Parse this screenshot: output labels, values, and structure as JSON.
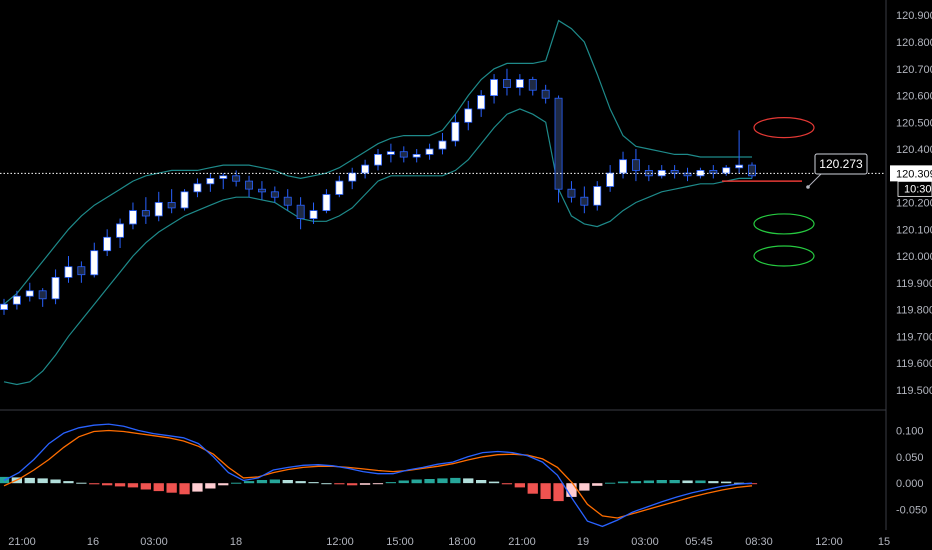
{
  "colors": {
    "background": "#000000",
    "bollinger": "#1e8a8a",
    "candle_up_body": "#ffffff",
    "candle_down_body": "#1f2a44",
    "candle_wick": "#2962ff",
    "price_line": "#ffffff",
    "hist_pos_strong": "#26a69a",
    "hist_pos_weak": "#b2dfdb",
    "hist_neg_strong": "#ef5350",
    "hist_neg_weak": "#ffcdd2",
    "macd_line": "#2962ff",
    "signal_line": "#ff6d00",
    "red_marker": "#e53935",
    "green_marker": "#26c940",
    "divider": "#3a3d45"
  },
  "chart_data": [
    {
      "type": "candlestick",
      "yaxis_ticks": [
        "120.900",
        "120.800",
        "120.700",
        "120.600",
        "120.500",
        "120.400",
        "120.300",
        "120.200",
        "120.100",
        "120.000",
        "119.900",
        "119.800",
        "119.700",
        "119.600",
        "119.500"
      ],
      "ylim": [
        119.432,
        120.957
      ],
      "current_price": "120.309",
      "countdown": "10:30",
      "callout": "120.273",
      "candles": [
        [
          119.8,
          119.84,
          119.78,
          119.82
        ],
        [
          119.82,
          119.87,
          119.8,
          119.85
        ],
        [
          119.85,
          119.9,
          119.83,
          119.87
        ],
        [
          119.87,
          119.88,
          119.81,
          119.84
        ],
        [
          119.84,
          119.95,
          119.82,
          119.92
        ],
        [
          119.92,
          120.0,
          119.9,
          119.96
        ],
        [
          119.96,
          119.98,
          119.9,
          119.93
        ],
        [
          119.93,
          120.05,
          119.92,
          120.02
        ],
        [
          120.02,
          120.1,
          120.0,
          120.07
        ],
        [
          120.07,
          120.14,
          120.03,
          120.12
        ],
        [
          120.12,
          120.2,
          120.1,
          120.17
        ],
        [
          120.17,
          120.22,
          120.12,
          120.15
        ],
        [
          120.15,
          120.24,
          120.13,
          120.2
        ],
        [
          120.2,
          120.25,
          120.16,
          120.18
        ],
        [
          120.18,
          120.25,
          120.17,
          120.24
        ],
        [
          120.24,
          120.29,
          120.22,
          120.27
        ],
        [
          120.27,
          120.31,
          120.24,
          120.29
        ],
        [
          120.29,
          120.31,
          120.25,
          120.3
        ],
        [
          120.3,
          120.32,
          120.26,
          120.28
        ],
        [
          120.28,
          120.3,
          120.22,
          120.25
        ],
        [
          120.25,
          120.28,
          120.21,
          120.24
        ],
        [
          120.24,
          120.26,
          120.2,
          120.22
        ],
        [
          120.22,
          120.25,
          120.17,
          120.19
        ],
        [
          120.19,
          120.22,
          120.1,
          120.14
        ],
        [
          120.14,
          120.2,
          120.12,
          120.17
        ],
        [
          120.17,
          120.25,
          120.16,
          120.23
        ],
        [
          120.23,
          120.3,
          120.22,
          120.28
        ],
        [
          120.28,
          120.33,
          120.25,
          120.31
        ],
        [
          120.31,
          120.36,
          120.29,
          120.34
        ],
        [
          120.34,
          120.4,
          120.32,
          120.38
        ],
        [
          120.38,
          120.42,
          120.35,
          120.39
        ],
        [
          120.39,
          120.41,
          120.35,
          120.37
        ],
        [
          120.37,
          120.4,
          120.35,
          120.38
        ],
        [
          120.38,
          120.42,
          120.36,
          120.4
        ],
        [
          120.4,
          120.46,
          120.38,
          120.43
        ],
        [
          120.43,
          120.53,
          120.41,
          120.5
        ],
        [
          120.5,
          120.58,
          120.47,
          120.55
        ],
        [
          120.55,
          120.62,
          120.52,
          120.6
        ],
        [
          120.6,
          120.68,
          120.57,
          120.66
        ],
        [
          120.66,
          120.7,
          120.6,
          120.63
        ],
        [
          120.63,
          120.68,
          120.6,
          120.66
        ],
        [
          120.66,
          120.67,
          120.6,
          120.62
        ],
        [
          120.62,
          120.64,
          120.57,
          120.59
        ],
        [
          120.59,
          120.6,
          120.2,
          120.25
        ],
        [
          120.25,
          120.28,
          120.2,
          120.22
        ],
        [
          120.22,
          120.26,
          120.16,
          120.19
        ],
        [
          120.19,
          120.28,
          120.17,
          120.26
        ],
        [
          120.26,
          120.34,
          120.24,
          120.31
        ],
        [
          120.31,
          120.39,
          120.29,
          120.36
        ],
        [
          120.36,
          120.4,
          120.28,
          120.32
        ],
        [
          120.32,
          120.34,
          120.28,
          120.3
        ],
        [
          120.3,
          120.34,
          120.29,
          120.32
        ],
        [
          120.32,
          120.34,
          120.29,
          120.31
        ],
        [
          120.31,
          120.33,
          120.28,
          120.3
        ],
        [
          120.3,
          120.33,
          120.29,
          120.32
        ],
        [
          120.32,
          120.34,
          120.29,
          120.31
        ],
        [
          120.31,
          120.34,
          120.3,
          120.33
        ],
        [
          120.33,
          120.47,
          120.31,
          120.34
        ],
        [
          120.34,
          120.35,
          120.29,
          120.3
        ]
      ],
      "bb_upper": [
        119.82,
        119.86,
        119.92,
        119.98,
        120.04,
        120.1,
        120.15,
        120.19,
        120.22,
        120.25,
        120.28,
        120.3,
        120.31,
        120.32,
        120.32,
        120.32,
        120.33,
        120.34,
        120.34,
        120.34,
        120.33,
        120.32,
        120.3,
        120.29,
        120.3,
        120.31,
        120.33,
        120.36,
        120.39,
        120.42,
        120.44,
        120.45,
        120.45,
        120.45,
        120.47,
        120.53,
        120.6,
        120.66,
        120.7,
        120.72,
        120.72,
        120.72,
        120.73,
        120.88,
        120.85,
        120.8,
        120.68,
        120.55,
        120.45,
        120.41,
        120.4,
        120.39,
        120.38,
        120.38,
        120.37,
        120.37,
        120.37,
        120.37,
        120.37
      ],
      "bb_lower": [
        119.53,
        119.52,
        119.53,
        119.57,
        119.63,
        119.7,
        119.76,
        119.82,
        119.88,
        119.94,
        120.0,
        120.05,
        120.09,
        120.12,
        120.15,
        120.17,
        120.19,
        120.21,
        120.22,
        120.22,
        120.21,
        120.2,
        120.17,
        120.14,
        120.13,
        120.13,
        120.15,
        120.18,
        120.23,
        120.28,
        120.3,
        120.3,
        120.3,
        120.3,
        120.3,
        120.32,
        120.36,
        120.42,
        120.48,
        120.53,
        120.55,
        120.53,
        120.5,
        120.25,
        120.15,
        120.12,
        120.11,
        120.13,
        120.17,
        120.2,
        120.22,
        120.24,
        120.25,
        120.26,
        120.27,
        120.27,
        120.28,
        120.29,
        120.29
      ],
      "red_markers": [
        120.48
      ],
      "green_markers": [
        120.12,
        120.0
      ],
      "support_line": 120.28
    },
    {
      "type": "bar",
      "name": "macd",
      "yaxis_ticks": [
        "0.100",
        "0.050",
        "0.000",
        "-0.050"
      ],
      "ylim": [
        -0.085,
        0.135
      ],
      "histogram": [
        0.012,
        0.011,
        0.01,
        0.009,
        0.007,
        0.004,
        0.001,
        -0.002,
        -0.004,
        -0.006,
        -0.008,
        -0.012,
        -0.015,
        -0.018,
        -0.021,
        -0.016,
        -0.01,
        -0.004,
        0.001,
        0.004,
        0.006,
        0.007,
        0.006,
        0.004,
        0.002,
        0.0,
        -0.002,
        -0.004,
        -0.003,
        -0.001,
        0.002,
        0.005,
        0.007,
        0.008,
        0.009,
        0.01,
        0.009,
        0.006,
        0.003,
        -0.002,
        -0.008,
        -0.02,
        -0.03,
        -0.034,
        -0.026,
        -0.014,
        -0.005,
        0.001,
        0.003,
        0.004,
        0.005,
        0.006,
        0.006,
        0.005,
        0.005,
        0.004,
        0.003,
        0.001,
        -0.001
      ],
      "macd_line": [
        0.005,
        0.02,
        0.045,
        0.075,
        0.095,
        0.105,
        0.11,
        0.112,
        0.108,
        0.1,
        0.094,
        0.09,
        0.086,
        0.075,
        0.05,
        0.02,
        0.005,
        0.01,
        0.025,
        0.03,
        0.034,
        0.035,
        0.033,
        0.028,
        0.022,
        0.018,
        0.018,
        0.025,
        0.03,
        0.036,
        0.04,
        0.05,
        0.058,
        0.06,
        0.058,
        0.052,
        0.04,
        0.015,
        -0.03,
        -0.072,
        -0.082,
        -0.07,
        -0.055,
        -0.045,
        -0.035,
        -0.026,
        -0.018,
        -0.012,
        -0.006,
        -0.002,
        0.0
      ],
      "signal_line": [
        -0.005,
        0.008,
        0.025,
        0.045,
        0.068,
        0.088,
        0.098,
        0.1,
        0.098,
        0.094,
        0.09,
        0.086,
        0.08,
        0.07,
        0.055,
        0.03,
        0.01,
        0.012,
        0.02,
        0.026,
        0.03,
        0.032,
        0.032,
        0.03,
        0.027,
        0.024,
        0.022,
        0.024,
        0.028,
        0.032,
        0.037,
        0.044,
        0.05,
        0.054,
        0.055,
        0.053,
        0.046,
        0.03,
        0.0,
        -0.04,
        -0.062,
        -0.066,
        -0.058,
        -0.05,
        -0.042,
        -0.034,
        -0.026,
        -0.019,
        -0.013,
        -0.008,
        -0.005
      ]
    }
  ],
  "x_axis": {
    "ticks": [
      "21:00",
      "16",
      "03:00",
      "18",
      "12:00",
      "15:00",
      "18:00",
      "21:00",
      "19",
      "03:00",
      "05:45",
      "08:30",
      "12:00",
      "15"
    ]
  }
}
